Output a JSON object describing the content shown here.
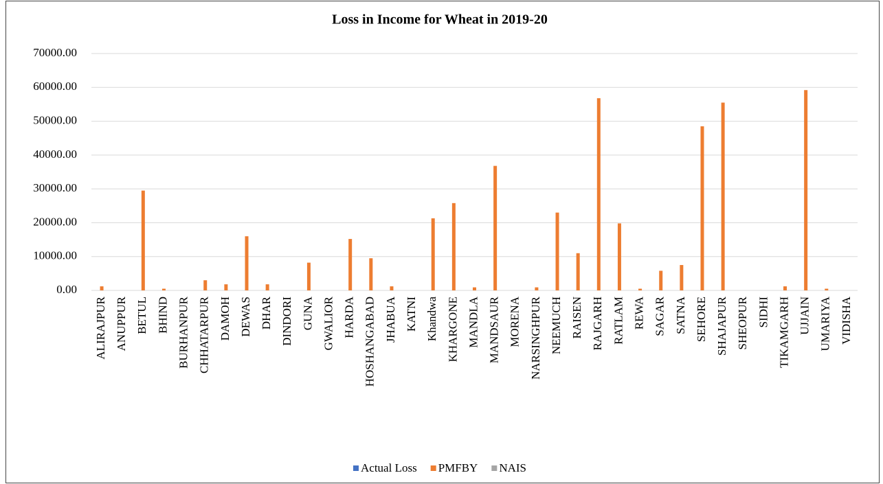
{
  "chart_data": {
    "type": "bar",
    "title": "Loss in Income for Wheat in 2019-20",
    "categories": [
      "ALIRAJPUR",
      "ANUPPUR",
      "BETUL",
      "BHIND",
      "BURHANPUR",
      "CHHATARPUR",
      "DAMOH",
      "DEWAS",
      "DHAR",
      "DINDORI",
      "GUNA",
      "GWALIOR",
      "HARDA",
      "HOSHANGABAD",
      "JHABUA",
      "KATNI",
      "Khandwa",
      "KHARGONE",
      "MANDLA",
      "MANDSAUR",
      "MORENA",
      "NARSINGHPUR",
      "NEEMUCH",
      "RAISEN",
      "RAJGARH",
      "RATLAM",
      "REWA",
      "SAGAR",
      "SATNA",
      "SEHORE",
      "SHAJAPUR",
      "SHEOPUR",
      "SIDHI",
      "TIKAMGARH",
      "UJJAIN",
      "UMARIYA",
      "VIDISHA"
    ],
    "series": [
      {
        "name": "Actual Loss",
        "color": "#4472c4",
        "values": [
          0,
          0,
          0,
          0,
          0,
          0,
          0,
          0,
          0,
          0,
          0,
          0,
          0,
          0,
          0,
          0,
          0,
          0,
          0,
          0,
          0,
          0,
          0,
          0,
          0,
          0,
          0,
          0,
          0,
          0,
          0,
          0,
          0,
          0,
          0,
          0,
          0
        ]
      },
      {
        "name": "PMFBY",
        "color": "#ed7d31",
        "values": [
          1200,
          0,
          29500,
          500,
          0,
          3000,
          1800,
          16000,
          1800,
          0,
          8200,
          0,
          15200,
          9500,
          1200,
          0,
          21300,
          25800,
          900,
          36800,
          0,
          900,
          23000,
          11000,
          56800,
          19800,
          500,
          5800,
          7500,
          48500,
          55500,
          0,
          0,
          1200,
          59200,
          500,
          0
        ]
      },
      {
        "name": "NAIS",
        "color": "#a5a5a5",
        "values": [
          0,
          0,
          0,
          0,
          0,
          0,
          0,
          0,
          0,
          0,
          0,
          0,
          0,
          0,
          0,
          0,
          0,
          0,
          0,
          0,
          0,
          0,
          0,
          0,
          0,
          0,
          0,
          0,
          0,
          0,
          0,
          0,
          0,
          0,
          0,
          0,
          0
        ]
      }
    ],
    "ylim": [
      0,
      70000
    ],
    "yticks": [
      {
        "value": 0,
        "label": "0.00"
      },
      {
        "value": 10000,
        "label": "10000.00"
      },
      {
        "value": 20000,
        "label": "20000.00"
      },
      {
        "value": 30000,
        "label": "30000.00"
      },
      {
        "value": 40000,
        "label": "40000.00"
      },
      {
        "value": 50000,
        "label": "50000.00"
      },
      {
        "value": 60000,
        "label": "60000.00"
      },
      {
        "value": 70000,
        "label": "70000.00"
      }
    ],
    "grid": true,
    "legend": "bottom"
  }
}
